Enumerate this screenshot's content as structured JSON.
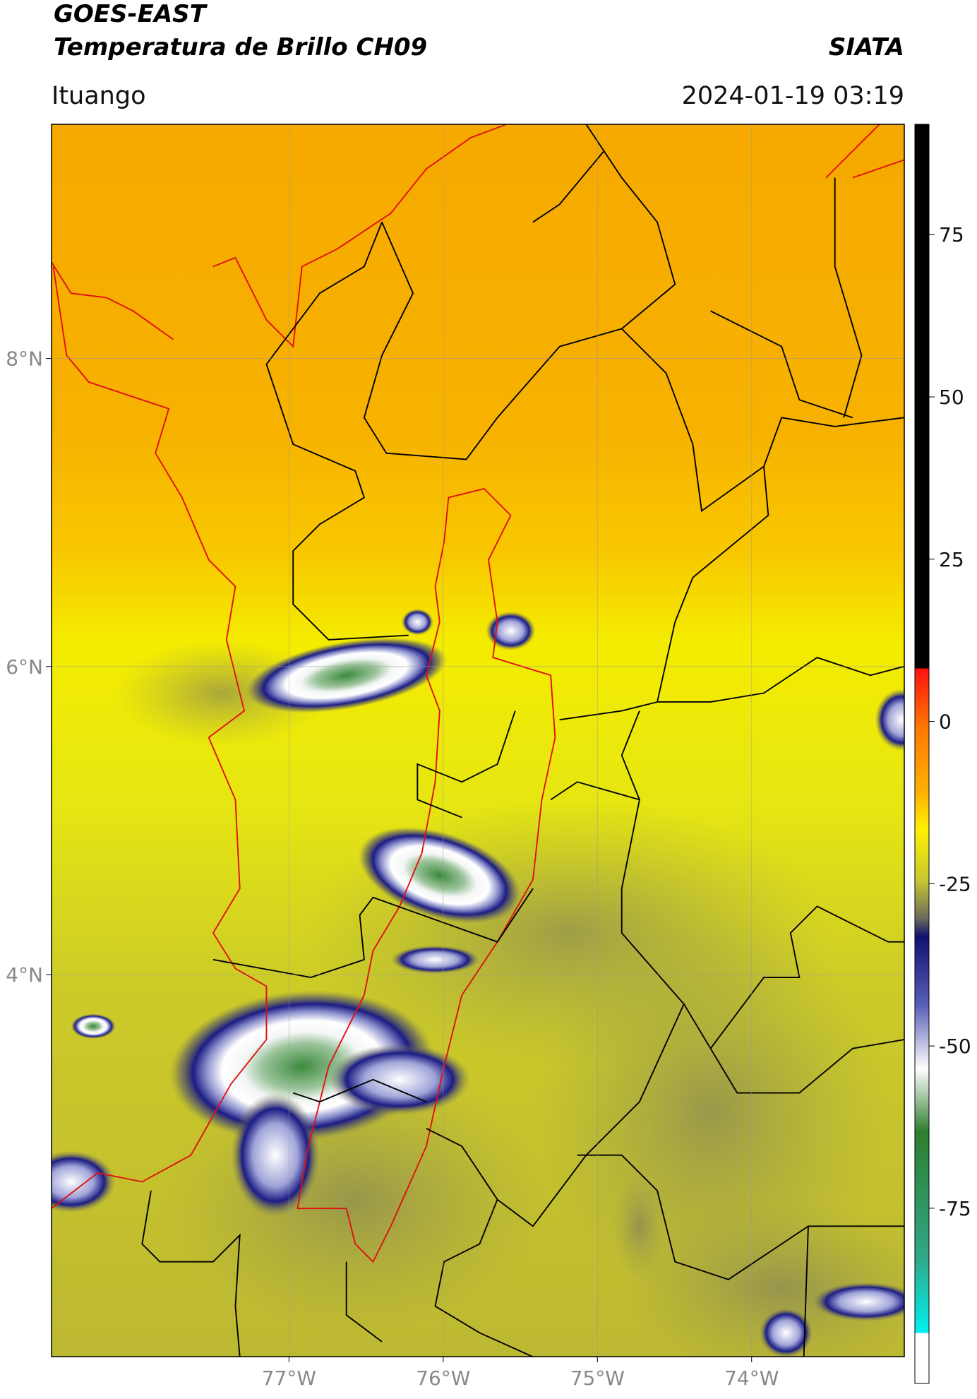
{
  "header": {
    "title": "GOES-EAST",
    "subtitle": "Temperatura de Brillo CH09",
    "brand": "SIATA",
    "region": "Ituango",
    "timestamp": "2024-01-19 03:19"
  },
  "map": {
    "xlim": [
      -78.54,
      -73.01
    ],
    "ylim": [
      1.52,
      9.52
    ],
    "xticks": [
      {
        "value": -77,
        "label": "77°W"
      },
      {
        "value": -76,
        "label": "76°W"
      },
      {
        "value": -75,
        "label": "75°W"
      },
      {
        "value": -74,
        "label": "74°W"
      }
    ],
    "yticks": [
      {
        "value": 8,
        "label": "8°N"
      },
      {
        "value": 6,
        "label": "6°N"
      },
      {
        "value": 4,
        "label": "4°N"
      }
    ],
    "grid": true
  },
  "colorbar": {
    "clim": [
      -102,
      92
    ],
    "ticks": [
      75,
      50,
      25,
      0,
      -25,
      -50,
      -75
    ]
  }
}
